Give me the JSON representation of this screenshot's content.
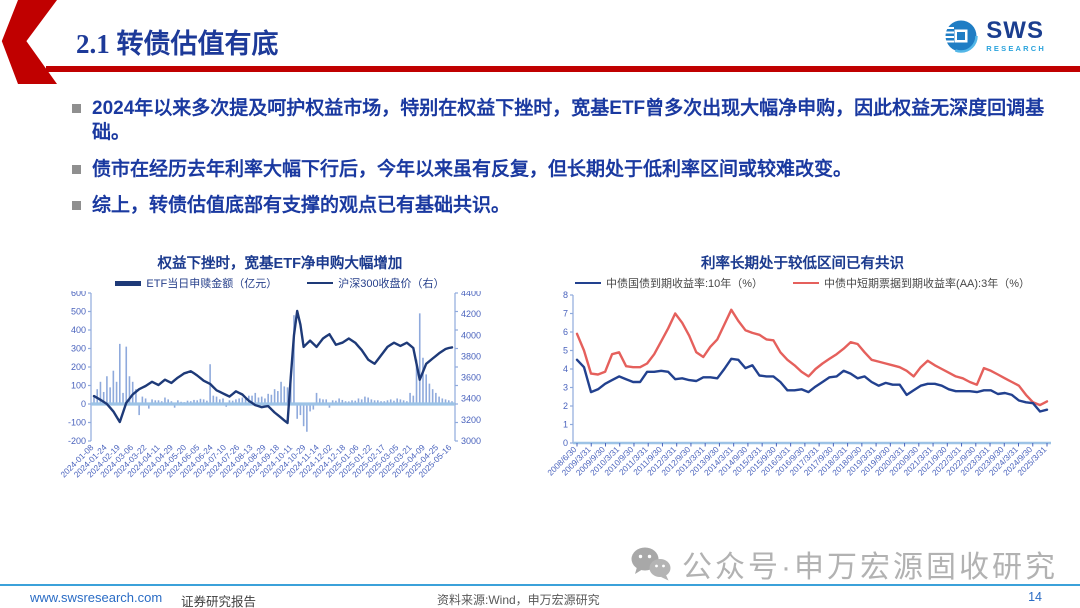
{
  "header": {
    "title": "2.1 转债估值有底",
    "logo_text": "SWS",
    "logo_subtext": "RESEARCH"
  },
  "bullets": [
    "2024年以来多次提及呵护权益市场，特别在权益下挫时，宽基ETF曾多次出现大幅净申购，因此权益无深度回调基础。",
    "债市在经历去年利率大幅下行后，今年以来虽有反复，但长期处于低利率区间或较难改变。",
    "综上，转债估值底部有支撑的观点已有基础共识。"
  ],
  "watermark": {
    "icon": "wechat-icon",
    "text": "公众号·申万宏源固收研究"
  },
  "footer": {
    "site": "www.swsresearch.com",
    "report_type": "证券研究报告",
    "source": "资料来源:Wind，申万宏源研究",
    "page": "14"
  },
  "colors": {
    "accent_red": "#c00000",
    "navy_line": "#1e3a78",
    "royal_line": "#22418f",
    "bar_blue": "#8faadc",
    "zero_line": "#9dc3e6",
    "red_line": "#e5605c",
    "axis_text": "#4a63bd",
    "axis_line": "#8faadc",
    "footer_blue": "#3ba1da",
    "link_blue": "#2a6cc5",
    "watermark_gray": "#b2b2b2"
  },
  "chart_data": [
    {
      "type": "bar",
      "title": "权益下挫时，宽基ETF净申购大幅增加",
      "legend": [
        {
          "label": "ETF当日申赎金额（亿元）",
          "swatch": "bar",
          "color": "#1e3a78"
        },
        {
          "label": "沪深300收盘价（右）",
          "swatch": "line",
          "color": "#1e3a78"
        }
      ],
      "left_axis": {
        "min": -200,
        "max": 600,
        "step": 100,
        "label": "ETF当日申赎金额（亿元）"
      },
      "right_axis": {
        "min": 3000,
        "max": 4400,
        "step": 200,
        "label": "沪深300收盘价"
      },
      "x_ticks": [
        "2024-01-08",
        "2024-01-24",
        "2024-02-19",
        "2024-03-06",
        "2024-03-22",
        "2024-04-11",
        "2024-04-29",
        "2024-05-20",
        "2024-06-05",
        "2024-06-24",
        "2024-07-10",
        "2024-07-26",
        "2024-08-13",
        "2024-08-29",
        "2024-09-18",
        "2024-10-11",
        "2024-10-29",
        "2024-11-14",
        "2024-12-02",
        "2024-12-18",
        "2025-01-06",
        "2025-01-22",
        "2025-02-17",
        "2025-03-05",
        "2025-03-21",
        "2025-04-09",
        "2025-04-25",
        "2025-05-16"
      ],
      "bars": [
        45,
        80,
        120,
        65,
        150,
        90,
        180,
        120,
        325,
        60,
        310,
        150,
        120,
        80,
        -60,
        40,
        30,
        -25,
        25,
        20,
        20,
        15,
        35,
        25,
        15,
        -20,
        20,
        12,
        10,
        18,
        15,
        22,
        20,
        28,
        25,
        18,
        215,
        45,
        40,
        25,
        30,
        -15,
        20,
        18,
        25,
        30,
        35,
        28,
        45,
        45,
        60,
        35,
        40,
        30,
        55,
        50,
        80,
        70,
        120,
        95,
        90,
        150,
        480,
        -80,
        -60,
        -120,
        -150,
        -40,
        -30,
        60,
        30,
        25,
        25,
        -20,
        20,
        18,
        30,
        22,
        15,
        14,
        20,
        18,
        30,
        25,
        40,
        35,
        25,
        20,
        20,
        15,
        15,
        20,
        25,
        18,
        30,
        25,
        20,
        15,
        60,
        45,
        240,
        490,
        250,
        160,
        110,
        80,
        60,
        40,
        30,
        25,
        20,
        15
      ],
      "line": [
        3425,
        3408,
        3390,
        3370,
        3350,
        3315,
        3280,
        3230,
        3180,
        3270,
        3360,
        3400,
        3440,
        3465,
        3490,
        3505,
        3520,
        3540,
        3560,
        3545,
        3530,
        3555,
        3580,
        3565,
        3550,
        3575,
        3600,
        3620,
        3640,
        3650,
        3660,
        3640,
        3620,
        3595,
        3570,
        3555,
        3540,
        3510,
        3480,
        3465,
        3450,
        3435,
        3420,
        3445,
        3470,
        3455,
        3440,
        3410,
        3380,
        3360,
        3340,
        3330,
        3320,
        3325,
        3330,
        3300,
        3270,
        3245,
        3220,
        3195,
        3170,
        3600,
        4000,
        4230,
        4100,
        3890,
        3920,
        3950,
        3920,
        3890,
        3930,
        3970,
        3990,
        4010,
        3960,
        3910,
        3920,
        3930,
        3950,
        3970,
        3950,
        3930,
        3895,
        3860,
        3815,
        3770,
        3750,
        3730,
        3770,
        3810,
        3850,
        3890,
        3910,
        3930,
        3915,
        3900,
        3915,
        3930,
        3905,
        3880,
        3730,
        3580,
        3655,
        3730,
        3755,
        3780,
        3805,
        3830,
        3850,
        3870,
        3880,
        3885
      ]
    },
    {
      "type": "line",
      "title": "利率长期处于较低区间已有共识",
      "legend": [
        {
          "label": "中债国债到期收益率:10年（%）",
          "swatch": "line",
          "color": "#22418f"
        },
        {
          "label": "中债中短期票据到期收益率(AA):3年（%）",
          "swatch": "line",
          "color": "#e5605c"
        }
      ],
      "y_axis": {
        "min": 0,
        "max": 8,
        "step": 1
      },
      "x_ticks": [
        "2008/6/30",
        "2009/3/31",
        "2009/9/30",
        "2010/3/31",
        "2010/9/30",
        "2011/3/31",
        "2011/9/30",
        "2012/3/31",
        "2012/9/30",
        "2013/3/31",
        "2013/9/30",
        "2014/3/31",
        "2014/9/30",
        "2015/3/31",
        "2015/9/30",
        "2016/3/31",
        "2016/9/30",
        "2017/3/31",
        "2017/9/30",
        "2018/3/31",
        "2018/9/30",
        "2019/3/31",
        "2019/9/30",
        "2020/3/31",
        "2020/9/30",
        "2021/3/31",
        "2021/9/30",
        "2022/3/31",
        "2022/9/30",
        "2023/3/31",
        "2023/9/30",
        "2024/3/31",
        "2024/9/30",
        "2025/3/31"
      ],
      "series": [
        {
          "name": "中债国债到期收益率:10年（%）",
          "color": "#22418f",
          "values": [
            4.5,
            4.1,
            2.75,
            2.9,
            3.2,
            3.4,
            3.6,
            3.45,
            3.3,
            3.3,
            3.85,
            3.85,
            3.9,
            3.85,
            3.45,
            3.5,
            3.4,
            3.35,
            3.55,
            3.55,
            3.5,
            4.0,
            4.55,
            4.5,
            4.05,
            4.2,
            3.65,
            3.6,
            3.6,
            3.3,
            2.85,
            2.85,
            2.9,
            2.75,
            3.05,
            3.3,
            3.55,
            3.6,
            3.9,
            3.75,
            3.5,
            3.6,
            3.3,
            3.1,
            3.25,
            3.15,
            3.15,
            2.6,
            2.85,
            3.1,
            3.2,
            3.2,
            3.1,
            2.9,
            2.8,
            2.8,
            2.8,
            2.75,
            2.85,
            2.85,
            2.65,
            2.7,
            2.6,
            2.3,
            2.2,
            2.15,
            1.7,
            1.8
          ]
        },
        {
          "name": "中债中短期票据到期收益率(AA):3年（%）",
          "color": "#e5605c",
          "values": [
            5.9,
            5.0,
            3.75,
            3.7,
            3.85,
            4.8,
            4.9,
            4.15,
            4.1,
            4.1,
            4.3,
            4.8,
            5.5,
            6.2,
            7.0,
            6.5,
            5.8,
            4.9,
            4.65,
            5.2,
            5.6,
            6.4,
            7.2,
            6.6,
            6.1,
            5.95,
            5.85,
            5.6,
            5.55,
            4.9,
            4.5,
            4.2,
            3.85,
            3.6,
            4.0,
            4.3,
            4.55,
            4.8,
            5.1,
            5.45,
            5.35,
            4.9,
            4.5,
            4.4,
            4.3,
            4.2,
            4.1,
            3.9,
            3.6,
            4.1,
            4.45,
            4.2,
            4.0,
            3.8,
            3.6,
            3.5,
            3.3,
            3.15,
            4.05,
            3.9,
            3.7,
            3.5,
            3.3,
            3.1,
            2.6,
            2.2,
            2.05,
            2.25
          ]
        }
      ]
    }
  ]
}
